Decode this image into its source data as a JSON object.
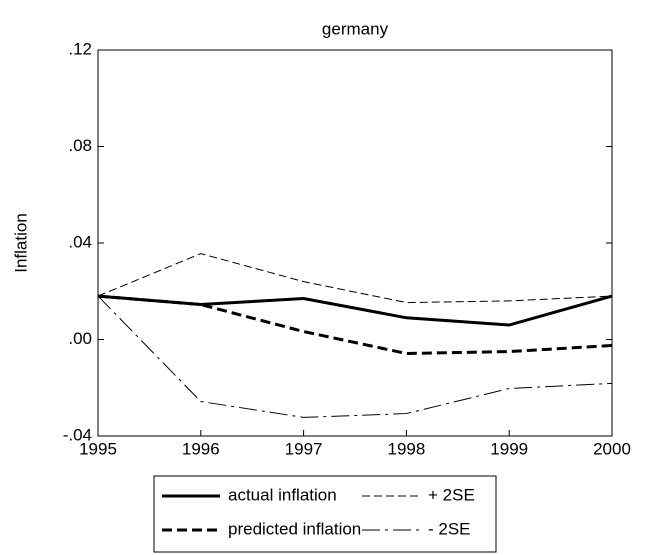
{
  "chart_data": {
    "type": "line",
    "title": "germany",
    "y_label": "Inflation",
    "x": [
      1995,
      1996,
      1997,
      1998,
      1999,
      2000
    ],
    "xlim": [
      1995,
      2000
    ],
    "xticks": [
      1995,
      1996,
      1997,
      1998,
      1999,
      2000
    ],
    "ylim": [
      -0.04,
      0.12
    ],
    "yticks": [
      {
        "value": -0.04,
        "label": "-.04"
      },
      {
        "value": 0,
        "label": ".00"
      },
      {
        "value": 0.04,
        "label": ".04"
      },
      {
        "value": 0.08,
        "label": ".08"
      },
      {
        "value": 0.12,
        "label": ".12"
      }
    ],
    "grid": false,
    "legend_position": "bottom",
    "series": [
      {
        "name": "actual inflation",
        "color": "#000000",
        "dash": "solid",
        "width": 3,
        "values": [
          0.018,
          0.0145,
          0.017,
          0.009,
          0.006,
          0.018
        ]
      },
      {
        "name": "+ 2SE",
        "color": "#000000",
        "dash": "short",
        "width": 1,
        "values": [
          0.018,
          0.0356,
          0.024,
          0.0153,
          0.016,
          0.018
        ]
      },
      {
        "name": "predicted inflation",
        "color": "#000000",
        "dash": "medium",
        "width": 3,
        "values": [
          0.018,
          0.0145,
          0.0033,
          -0.0058,
          -0.005,
          -0.0025
        ]
      },
      {
        "name": "- 2SE",
        "color": "#000000",
        "dash": "long",
        "width": 1,
        "values": [
          0.018,
          -0.0257,
          -0.0323,
          -0.0307,
          -0.0203,
          -0.0182
        ]
      }
    ]
  }
}
